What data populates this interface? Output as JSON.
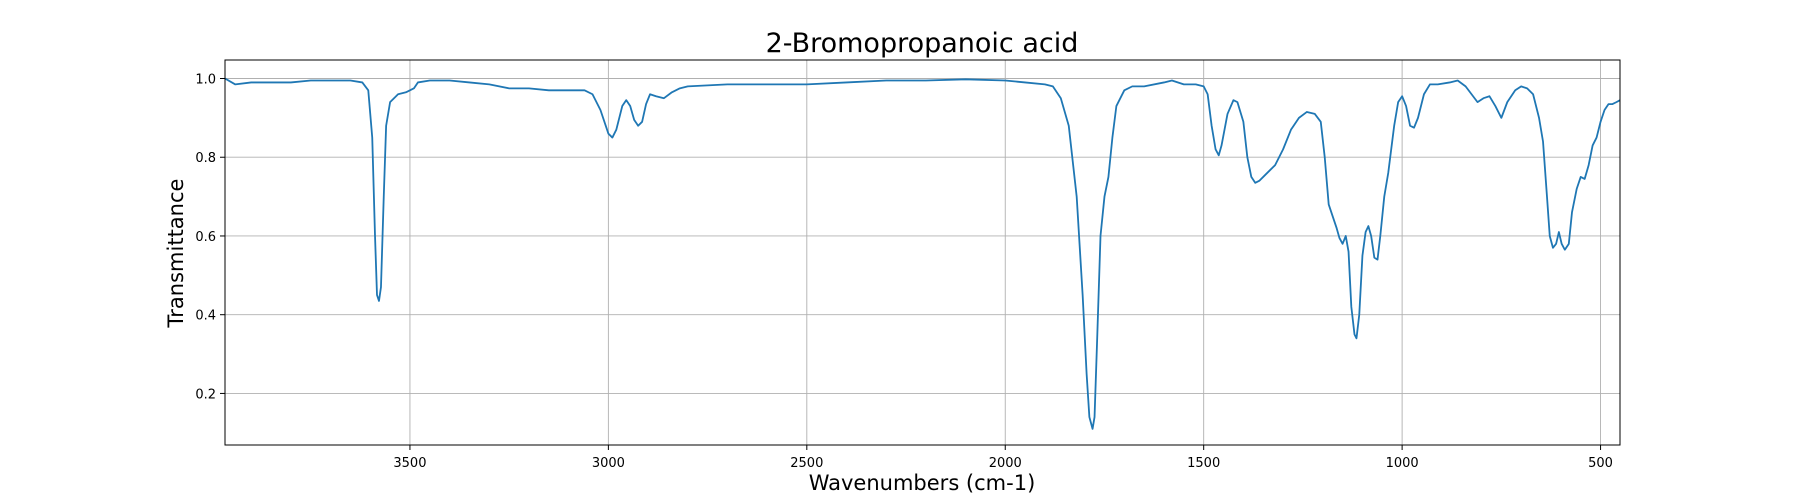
{
  "chart_data": {
    "type": "line",
    "title": "2-Bromopropanoic acid",
    "x_label": "Wavenumbers (cm-1)",
    "y_label": "Transmittance",
    "color": "#1f77b4",
    "grid": true,
    "xlim": [
      3966,
      451
    ],
    "ylim": [
      0.069,
      1.047
    ],
    "xticks": [
      3500,
      3000,
      2500,
      2000,
      1500,
      1000,
      500
    ],
    "yticks": [
      0.2,
      0.4,
      0.6,
      0.8,
      {
        "value": 1,
        "label": "1.0"
      }
    ],
    "x": [
      3966,
      3940,
      3900,
      3850,
      3800,
      3750,
      3700,
      3650,
      3620,
      3605,
      3595,
      3588,
      3583,
      3578,
      3573,
      3566,
      3560,
      3550,
      3530,
      3510,
      3490,
      3480,
      3450,
      3400,
      3350,
      3300,
      3250,
      3200,
      3150,
      3100,
      3060,
      3040,
      3020,
      3000,
      2990,
      2980,
      2965,
      2955,
      2945,
      2935,
      2925,
      2915,
      2905,
      2895,
      2880,
      2860,
      2840,
      2820,
      2800,
      2700,
      2600,
      2500,
      2400,
      2300,
      2200,
      2100,
      2000,
      1950,
      1900,
      1880,
      1860,
      1840,
      1820,
      1805,
      1795,
      1788,
      1780,
      1775,
      1768,
      1760,
      1750,
      1740,
      1730,
      1720,
      1700,
      1680,
      1650,
      1600,
      1580,
      1550,
      1520,
      1500,
      1490,
      1480,
      1470,
      1462,
      1455,
      1440,
      1425,
      1415,
      1400,
      1390,
      1380,
      1370,
      1360,
      1345,
      1320,
      1300,
      1280,
      1260,
      1240,
      1220,
      1205,
      1195,
      1185,
      1175,
      1165,
      1158,
      1150,
      1142,
      1135,
      1128,
      1120,
      1115,
      1108,
      1100,
      1092,
      1085,
      1078,
      1070,
      1062,
      1055,
      1045,
      1035,
      1020,
      1010,
      1000,
      990,
      980,
      970,
      960,
      945,
      930,
      910,
      880,
      860,
      840,
      825,
      810,
      795,
      780,
      765,
      750,
      735,
      715,
      700,
      685,
      670,
      655,
      645,
      635,
      628,
      620,
      612,
      605,
      598,
      590,
      580,
      572,
      560,
      550,
      540,
      530,
      520,
      510,
      500,
      490,
      480,
      470,
      460,
      451
    ],
    "values": [
      1.0,
      0.985,
      0.99,
      0.99,
      0.99,
      0.995,
      0.995,
      0.995,
      0.99,
      0.97,
      0.85,
      0.6,
      0.45,
      0.435,
      0.47,
      0.7,
      0.88,
      0.94,
      0.96,
      0.965,
      0.975,
      0.99,
      0.995,
      0.995,
      0.99,
      0.985,
      0.975,
      0.975,
      0.97,
      0.97,
      0.97,
      0.96,
      0.92,
      0.86,
      0.85,
      0.87,
      0.93,
      0.945,
      0.93,
      0.895,
      0.88,
      0.89,
      0.935,
      0.96,
      0.955,
      0.95,
      0.965,
      0.975,
      0.98,
      0.985,
      0.985,
      0.985,
      0.99,
      0.995,
      0.995,
      0.998,
      0.995,
      0.99,
      0.985,
      0.98,
      0.95,
      0.88,
      0.7,
      0.45,
      0.25,
      0.14,
      0.11,
      0.14,
      0.35,
      0.6,
      0.7,
      0.75,
      0.85,
      0.93,
      0.97,
      0.98,
      0.98,
      0.99,
      0.995,
      0.985,
      0.985,
      0.98,
      0.96,
      0.88,
      0.82,
      0.805,
      0.83,
      0.91,
      0.945,
      0.94,
      0.89,
      0.8,
      0.75,
      0.735,
      0.74,
      0.755,
      0.78,
      0.82,
      0.87,
      0.9,
      0.915,
      0.91,
      0.89,
      0.8,
      0.68,
      0.65,
      0.62,
      0.595,
      0.58,
      0.6,
      0.56,
      0.42,
      0.35,
      0.34,
      0.4,
      0.55,
      0.61,
      0.625,
      0.6,
      0.545,
      0.54,
      0.6,
      0.7,
      0.76,
      0.88,
      0.94,
      0.955,
      0.93,
      0.88,
      0.875,
      0.9,
      0.96,
      0.985,
      0.985,
      0.99,
      0.995,
      0.98,
      0.96,
      0.94,
      0.95,
      0.955,
      0.93,
      0.9,
      0.94,
      0.97,
      0.98,
      0.975,
      0.96,
      0.9,
      0.84,
      0.7,
      0.6,
      0.57,
      0.58,
      0.61,
      0.58,
      0.565,
      0.58,
      0.66,
      0.72,
      0.75,
      0.745,
      0.78,
      0.83,
      0.85,
      0.89,
      0.92,
      0.935,
      0.935,
      0.94,
      0.945
    ]
  }
}
